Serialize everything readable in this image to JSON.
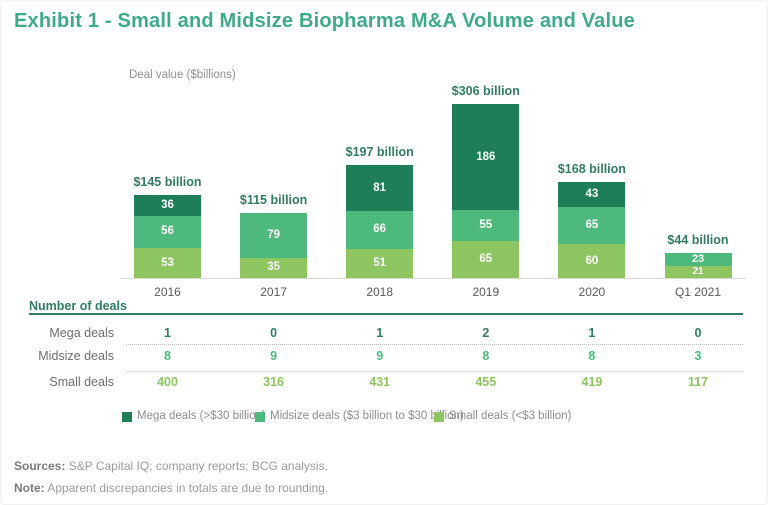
{
  "page": {
    "title": "Exhibit 1 - Small and Midsize Biopharma M&A Volume and Value"
  },
  "chart_data": {
    "type": "bar",
    "stacked": true,
    "title": "Exhibit 1 - Small and Midsize Biopharma M&A Volume and Value",
    "ylabel": "Deal value ($billions)",
    "xlabel": "",
    "categories": [
      "2016",
      "2017",
      "2018",
      "2019",
      "2020",
      "Q1 2021"
    ],
    "series": [
      {
        "name": "Small deals",
        "color": "#8dc561",
        "values": [
          53,
          35,
          51,
          65,
          60,
          21
        ]
      },
      {
        "name": "Midsize deals",
        "color": "#4eb97c",
        "values": [
          56,
          79,
          66,
          55,
          65,
          23
        ]
      },
      {
        "name": "Mega deals",
        "color": "#1d7e57",
        "values": [
          36,
          0,
          81,
          186,
          43,
          0
        ]
      }
    ],
    "totals": [
      "$145 billion",
      "$115 billion",
      "$197 billion",
      "$306 billion",
      "$168 billion",
      "$44 billion"
    ],
    "ylim": [
      0,
      306
    ],
    "grid": false,
    "legend_position": "bottom"
  },
  "table": {
    "header": "Number of deals",
    "columns": [
      "2016",
      "2017",
      "2018",
      "2019",
      "2020",
      "Q1 2021"
    ],
    "rows": [
      {
        "label": "Mega deals",
        "color": "#2e7d64",
        "values": [
          "1",
          "0",
          "1",
          "2",
          "1",
          "0"
        ]
      },
      {
        "label": "Midsize deals",
        "color": "#4eb97c",
        "values": [
          "8",
          "9",
          "9",
          "8",
          "8",
          "3"
        ]
      },
      {
        "label": "Small deals",
        "color": "#8dc561",
        "values": [
          "400",
          "316",
          "431",
          "455",
          "419",
          "117"
        ]
      }
    ]
  },
  "legend": {
    "items": [
      {
        "label": "Mega deals (>$30 billion)",
        "color": "#1d7e57"
      },
      {
        "label": "Midsize deals ($3 billion to $30 billion)",
        "color": "#4eb97c"
      },
      {
        "label": "Small deals (<$3 billion)",
        "color": "#8dc561"
      }
    ]
  },
  "footer": {
    "sources_label": "Sources:",
    "sources_text": " S&P Capital IQ; company reports; BCG analysis.",
    "note_label": "Note:",
    "note_text": " Apparent discrepancies in totals are due to rounding."
  },
  "colors": {
    "title": "#3faa8b",
    "dark_green": "#1d7e57",
    "mid_green": "#4eb97c",
    "light_green": "#8dc561",
    "total_label": "#337c63",
    "table_rule": "#2e7d64"
  }
}
